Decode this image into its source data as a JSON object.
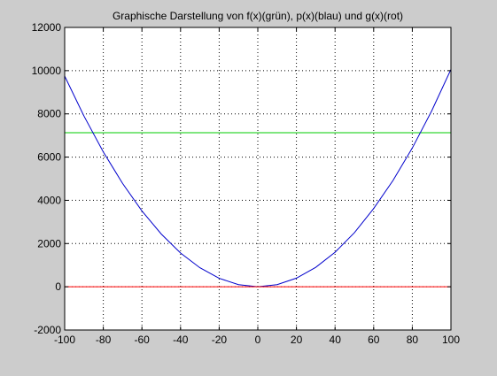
{
  "chart_data": {
    "type": "line",
    "title": "Graphische Darstellung von f(x)(grün), p(x)(blau) und g(x)(rot)",
    "xlabel": "",
    "ylabel": "",
    "xlim": [
      -100,
      100
    ],
    "ylim": [
      -2000,
      12000
    ],
    "x_ticks": [
      -100,
      -80,
      -60,
      -40,
      -20,
      0,
      20,
      40,
      60,
      80,
      100
    ],
    "y_ticks": [
      -2000,
      0,
      2000,
      4000,
      6000,
      8000,
      10000,
      12000
    ],
    "x_tick_labels": [
      "-100",
      "-80",
      "-60",
      "-40",
      "-20",
      "0",
      "20",
      "40",
      "60",
      "80",
      "100"
    ],
    "y_tick_labels": [
      "-2000",
      "0",
      "2000",
      "4000",
      "6000",
      "8000",
      "10000",
      "12000"
    ],
    "grid": true,
    "grid_style": "dotted",
    "legend": "none",
    "series": [
      {
        "color": "#00cc00",
        "x": [
          -100,
          100
        ],
        "y": [
          7130,
          7130
        ]
      },
      {
        "color": "#0000cc",
        "x": [
          -100,
          -90,
          -80,
          -70,
          -60,
          -50,
          -40,
          -30,
          -20,
          -10,
          0,
          10,
          20,
          30,
          40,
          50,
          60,
          70,
          80,
          90,
          100
        ],
        "y": [
          9750,
          7900,
          6240,
          4780,
          3510,
          2440,
          1560,
          880,
          390,
          100,
          0,
          100,
          400,
          900,
          1600,
          2500,
          3620,
          4920,
          6420,
          8130,
          10060
        ]
      },
      {
        "color": "#ff0000",
        "x": [
          -100,
          100
        ],
        "y": [
          0,
          0
        ]
      }
    ]
  },
  "colors": {
    "figure_background": "#cccccc",
    "axes_background": "#ffffff",
    "axes_color": "#000000"
  }
}
